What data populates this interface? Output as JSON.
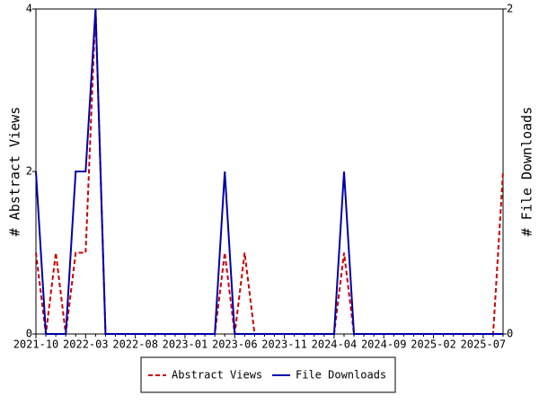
{
  "chart_data": {
    "type": "line",
    "categories": [
      "2021-10",
      null,
      null,
      null,
      null,
      "2022-03",
      null,
      null,
      null,
      null,
      "2022-08",
      null,
      null,
      null,
      null,
      "2023-01",
      null,
      null,
      null,
      null,
      "2023-06",
      null,
      null,
      null,
      null,
      "2023-11",
      null,
      null,
      null,
      null,
      "2024-04",
      null,
      null,
      null,
      null,
      "2024-09",
      null,
      null,
      null,
      null,
      "2025-02",
      null,
      null,
      null,
      null,
      "2025-07",
      null,
      null
    ],
    "y_label": "# Abstract Views",
    "y2_label": "# File Downloads",
    "ylim": [
      0,
      4
    ],
    "yticks": [
      0,
      2,
      4
    ],
    "y2lim": [
      0,
      2
    ],
    "y2ticks": [
      0,
      2
    ],
    "legend": "bottom",
    "series": [
      {
        "name": "Abstract Views",
        "color": "#cc0000",
        "dash": true,
        "values": [
          1,
          0,
          1,
          0,
          1,
          1,
          4,
          0,
          0,
          0,
          0,
          0,
          0,
          0,
          0,
          0,
          0,
          0,
          0,
          1,
          0,
          1,
          0,
          0,
          0,
          0,
          0,
          0,
          0,
          0,
          0,
          1,
          0,
          0,
          0,
          0,
          0,
          0,
          0,
          0,
          0,
          0,
          0,
          0,
          0,
          0,
          0,
          2
        ]
      },
      {
        "name": "File Downloads",
        "color": "#0000aa",
        "dash": false,
        "axis": "y2",
        "values": [
          1,
          0,
          0,
          0,
          1,
          1,
          2,
          0,
          0,
          0,
          0,
          0,
          0,
          0,
          0,
          0,
          0,
          0,
          0,
          1,
          0,
          0,
          0,
          0,
          0,
          0,
          0,
          0,
          0,
          0,
          0,
          1,
          0,
          0,
          0,
          0,
          0,
          0,
          0,
          0,
          0,
          0,
          0,
          0,
          0,
          0,
          0,
          0
        ]
      }
    ]
  }
}
